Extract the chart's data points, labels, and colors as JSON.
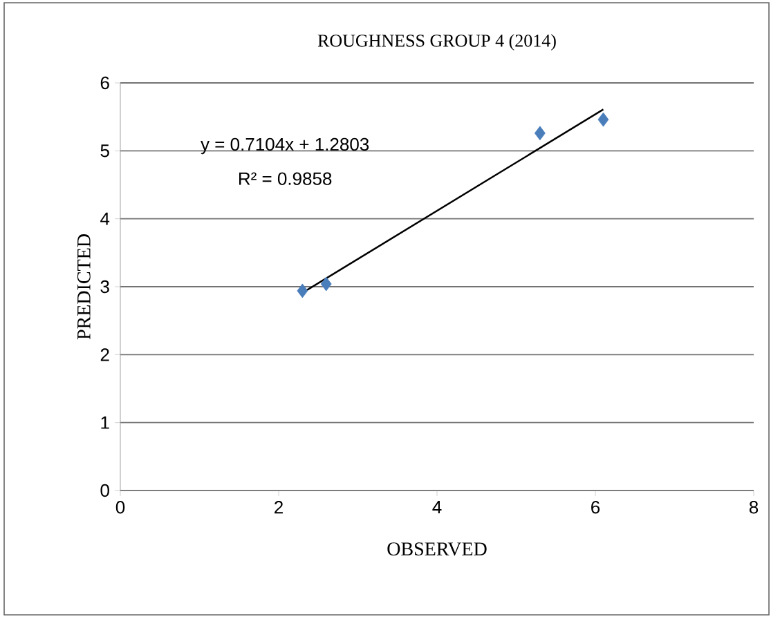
{
  "chart_data": {
    "type": "scatter",
    "title": "ROUGHNESS GROUP 4 (2014)",
    "xlabel": "OBSERVED",
    "ylabel": "PREDICTED",
    "series": [
      {
        "marker": "diamond",
        "color": "#4a7ebb",
        "x": [
          2.3,
          2.6,
          5.3,
          6.1
        ],
        "values": [
          2.94,
          3.04,
          5.26,
          5.46
        ]
      },
      {
        "type": "line",
        "marker": "none",
        "color": "#000000",
        "x": [
          2.3,
          6.1
        ],
        "values": [
          2.91,
          5.61
        ]
      }
    ],
    "annotations": [
      "y = 0.7104x + 1.2803",
      "R² = 0.9858"
    ],
    "xlim": [
      0,
      8
    ],
    "xticks": [
      0,
      2,
      4,
      6,
      8
    ],
    "ylim": [
      0,
      6
    ],
    "yticks": [
      0,
      1,
      2,
      3,
      4,
      5,
      6
    ],
    "grid": "y"
  }
}
